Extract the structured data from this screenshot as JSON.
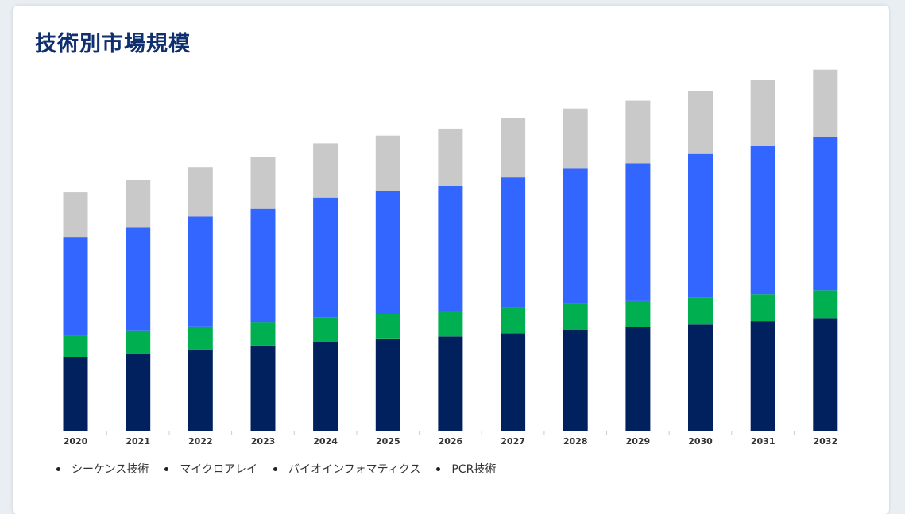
{
  "title": "技術別市場規模",
  "colors": {
    "background": "#e9eef3",
    "card": "#ffffff",
    "title": "#0f2f6e",
    "axis": "#cccccc"
  },
  "chart_data": {
    "type": "bar",
    "stacked": true,
    "title": "",
    "xlabel": "",
    "ylabel": "",
    "grid": false,
    "legend_position": "bottom-left",
    "ylim": [
      0,
      130
    ],
    "categories": [
      "2020",
      "2021",
      "2022",
      "2023",
      "2024",
      "2025",
      "2026",
      "2027",
      "2028",
      "2029",
      "2030",
      "2031",
      "2032"
    ],
    "series": [
      {
        "name": "シーケンス技術",
        "color": "#00215e",
        "values": [
          26.4,
          27.8,
          29.2,
          30.6,
          32.0,
          32.9,
          33.9,
          35.0,
          36.2,
          37.2,
          38.2,
          39.4,
          40.5
        ]
      },
      {
        "name": "マイクロアレイ",
        "color": "#00b050",
        "values": [
          7.8,
          8.0,
          8.3,
          8.5,
          8.8,
          9.1,
          9.1,
          9.1,
          9.4,
          9.4,
          9.7,
          9.7,
          10.0
        ]
      },
      {
        "name": "バイオインフォマティクス",
        "color": "#3366ff",
        "values": [
          35.5,
          37.2,
          39.5,
          40.7,
          43.0,
          44.1,
          45.0,
          47.0,
          48.6,
          49.6,
          51.6,
          53.2,
          55.0
        ]
      },
      {
        "name": "PCR技術",
        "color": "#c9c9c9",
        "values": [
          16.0,
          17.0,
          17.8,
          18.6,
          19.5,
          20.0,
          20.6,
          21.2,
          21.6,
          22.5,
          22.6,
          23.7,
          24.3
        ]
      }
    ]
  }
}
